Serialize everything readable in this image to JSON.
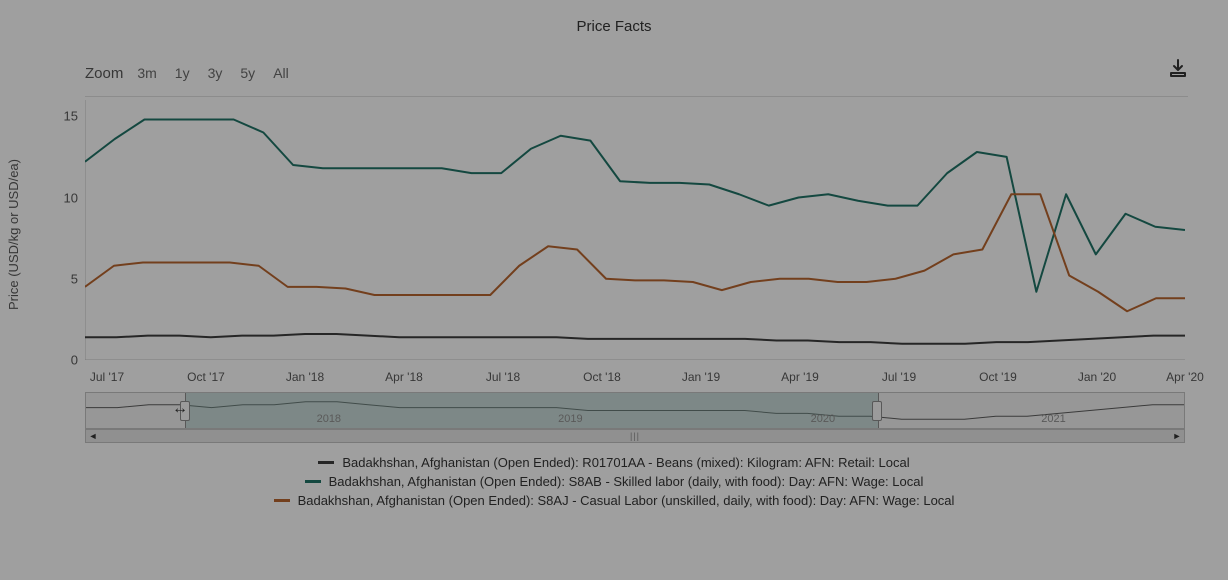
{
  "title": "Price Facts",
  "zoom": {
    "label": "Zoom",
    "buttons": [
      "3m",
      "1y",
      "3y",
      "5y",
      "All"
    ]
  },
  "chart": {
    "type": "line",
    "background_color": "#f5f5f5",
    "axis_color": "#bfbfbf",
    "text_color": "#555555",
    "line_width": 2,
    "y_axis": {
      "title": "Price (USD/kg or USD/ea)",
      "min": 0,
      "max": 16,
      "ticks": [
        0,
        5,
        10,
        15
      ]
    },
    "x_axis": {
      "ticks": [
        "Jul '17",
        "Oct '17",
        "Jan '18",
        "Apr '18",
        "Jul '18",
        "Oct '18",
        "Jan '19",
        "Apr '19",
        "Jul '19",
        "Oct '19",
        "Jan '20",
        "Apr '20"
      ],
      "tick_positions": [
        0.02,
        0.11,
        0.2,
        0.29,
        0.38,
        0.47,
        0.56,
        0.65,
        0.74,
        0.83,
        0.92,
        1.0
      ]
    },
    "series": [
      {
        "name": "Badakhshan, Afghanistan (Open Ended): R01701AA - Beans (mixed): Kilogram: AFN: Retail: Local",
        "color": "#3b3b3b",
        "values": [
          1.4,
          1.4,
          1.5,
          1.5,
          1.4,
          1.5,
          1.5,
          1.6,
          1.6,
          1.5,
          1.4,
          1.4,
          1.4,
          1.4,
          1.4,
          1.4,
          1.3,
          1.3,
          1.3,
          1.3,
          1.3,
          1.3,
          1.2,
          1.2,
          1.1,
          1.1,
          1.0,
          1.0,
          1.0,
          1.1,
          1.1,
          1.2,
          1.3,
          1.4,
          1.5,
          1.5
        ]
      },
      {
        "name": "Badakhshan, Afghanistan (Open Ended): S8AB - Skilled labor (daily, with food): Day: AFN: Wage: Local",
        "color": "#1f6f63",
        "values": [
          12.2,
          13.6,
          14.8,
          14.8,
          14.8,
          14.8,
          14.0,
          12.0,
          11.8,
          11.8,
          11.8,
          11.8,
          11.8,
          11.5,
          11.5,
          13.0,
          13.8,
          13.5,
          11.0,
          10.9,
          10.9,
          10.8,
          10.2,
          9.5,
          10.0,
          10.2,
          9.8,
          9.5,
          9.5,
          11.5,
          12.8,
          12.5,
          4.2,
          10.2,
          6.5,
          9.0,
          8.2,
          8.0
        ]
      },
      {
        "name": "Badakhshan, Afghanistan (Open Ended): S8AJ - Casual Labor (unskilled, daily, with food): Day: AFN: Wage: Local",
        "color": "#b1622d",
        "values": [
          4.5,
          5.8,
          6.0,
          6.0,
          6.0,
          6.0,
          5.8,
          4.5,
          4.5,
          4.4,
          4.0,
          4.0,
          4.0,
          4.0,
          4.0,
          5.8,
          7.0,
          6.8,
          5.0,
          4.9,
          4.9,
          4.8,
          4.3,
          4.8,
          5.0,
          5.0,
          4.8,
          4.8,
          5.0,
          5.5,
          6.5,
          6.8,
          10.2,
          10.2,
          5.2,
          4.2,
          3.0,
          3.8,
          3.8
        ]
      }
    ]
  },
  "navigator": {
    "years": [
      "2018",
      "2019",
      "2020",
      "2021"
    ],
    "year_positions": [
      0.21,
      0.43,
      0.66,
      0.87
    ],
    "selection_start": 0.09,
    "selection_end": 0.72,
    "line_color": "#5a5a5a"
  },
  "legend_items": [
    {
      "color": "#3b3b3b",
      "label": "Badakhshan, Afghanistan (Open Ended): R01701AA - Beans (mixed): Kilogram: AFN: Retail: Local"
    },
    {
      "color": "#1f6f63",
      "label": "Badakhshan, Afghanistan (Open Ended): S8AB - Skilled labor (daily, with food): Day: AFN: Wage: Local"
    },
    {
      "color": "#b1622d",
      "label": "Badakhshan, Afghanistan (Open Ended): S8AJ - Casual Labor (unskilled, daily, with food): Day: AFN: Wage: Local"
    }
  ],
  "cursor_glyph": "↔",
  "overlay_opacity": 0.35
}
